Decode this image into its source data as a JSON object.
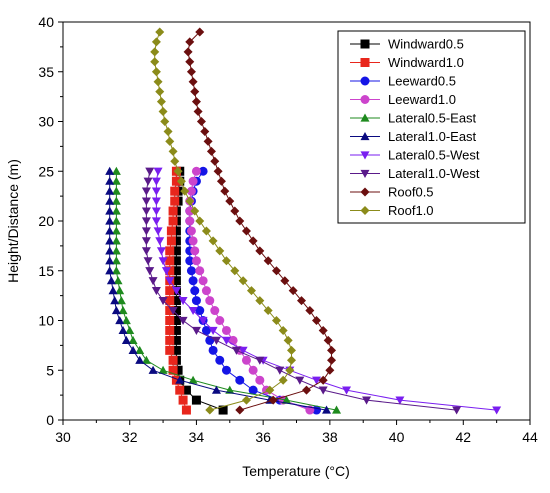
{
  "chart_data": {
    "type": "line",
    "xlabel": "Temperature (°C)",
    "ylabel": "Height/Distance (m)",
    "xlim": [
      30,
      44
    ],
    "ylim": [
      0,
      40
    ],
    "xticks": [
      30,
      32,
      34,
      36,
      38,
      40,
      42,
      44
    ],
    "yticks": [
      0,
      5,
      10,
      15,
      20,
      25,
      30,
      35,
      40
    ],
    "legend_position": "top-right",
    "series": [
      {
        "name": "Windward0.5",
        "color": "#000000",
        "marker": "square",
        "points": [
          [
            34.8,
            1
          ],
          [
            34.0,
            2
          ],
          [
            33.7,
            3
          ],
          [
            33.5,
            4
          ],
          [
            33.45,
            5
          ],
          [
            33.4,
            6
          ],
          [
            33.4,
            7
          ],
          [
            33.4,
            8
          ],
          [
            33.4,
            9
          ],
          [
            33.4,
            10
          ],
          [
            33.4,
            11
          ],
          [
            33.4,
            12
          ],
          [
            33.4,
            13
          ],
          [
            33.4,
            14
          ],
          [
            33.4,
            15
          ],
          [
            33.4,
            16
          ],
          [
            33.4,
            17
          ],
          [
            33.4,
            18
          ],
          [
            33.4,
            19
          ],
          [
            33.4,
            20
          ],
          [
            33.4,
            21
          ],
          [
            33.45,
            22
          ],
          [
            33.45,
            23
          ],
          [
            33.5,
            24
          ],
          [
            33.5,
            25
          ]
        ]
      },
      {
        "name": "Windward1.0",
        "color": "#e8261c",
        "marker": "square",
        "points": [
          [
            33.7,
            1
          ],
          [
            33.6,
            2
          ],
          [
            33.5,
            3
          ],
          [
            33.4,
            4
          ],
          [
            33.3,
            5
          ],
          [
            33.3,
            6
          ],
          [
            33.2,
            7
          ],
          [
            33.2,
            8
          ],
          [
            33.2,
            9
          ],
          [
            33.2,
            10
          ],
          [
            33.2,
            11
          ],
          [
            33.2,
            12
          ],
          [
            33.2,
            13
          ],
          [
            33.2,
            14
          ],
          [
            33.2,
            15
          ],
          [
            33.2,
            16
          ],
          [
            33.2,
            17
          ],
          [
            33.25,
            18
          ],
          [
            33.25,
            19
          ],
          [
            33.3,
            20
          ],
          [
            33.3,
            21
          ],
          [
            33.35,
            22
          ],
          [
            33.35,
            23
          ],
          [
            33.4,
            24
          ],
          [
            33.4,
            25
          ]
        ]
      },
      {
        "name": "Leeward0.5",
        "color": "#1515e6",
        "marker": "circle",
        "points": [
          [
            37.6,
            1
          ],
          [
            36.5,
            2
          ],
          [
            35.7,
            3
          ],
          [
            35.3,
            4
          ],
          [
            34.9,
            5
          ],
          [
            34.7,
            6
          ],
          [
            34.5,
            7
          ],
          [
            34.4,
            8
          ],
          [
            34.3,
            9
          ],
          [
            34.2,
            10
          ],
          [
            34.1,
            11
          ],
          [
            34.0,
            12
          ],
          [
            33.95,
            13
          ],
          [
            33.9,
            14
          ],
          [
            33.85,
            15
          ],
          [
            33.8,
            16
          ],
          [
            33.8,
            17
          ],
          [
            33.8,
            18
          ],
          [
            33.8,
            19
          ],
          [
            33.8,
            20
          ],
          [
            33.8,
            21
          ],
          [
            33.85,
            22
          ],
          [
            33.9,
            23
          ],
          [
            34.0,
            24
          ],
          [
            34.2,
            25
          ]
        ]
      },
      {
        "name": "Leeward1.0",
        "color": "#cc44cc",
        "marker": "circle",
        "points": [
          [
            37.4,
            1
          ],
          [
            36.6,
            2
          ],
          [
            36.1,
            3
          ],
          [
            35.9,
            4
          ],
          [
            35.7,
            5
          ],
          [
            35.5,
            6
          ],
          [
            35.3,
            7
          ],
          [
            35.1,
            8
          ],
          [
            34.9,
            9
          ],
          [
            34.7,
            10
          ],
          [
            34.55,
            11
          ],
          [
            34.4,
            12
          ],
          [
            34.3,
            13
          ],
          [
            34.2,
            14
          ],
          [
            34.1,
            15
          ],
          [
            34.0,
            16
          ],
          [
            33.95,
            17
          ],
          [
            33.9,
            18
          ],
          [
            33.85,
            19
          ],
          [
            33.8,
            20
          ],
          [
            33.8,
            21
          ],
          [
            33.8,
            22
          ],
          [
            33.85,
            23
          ],
          [
            33.9,
            24
          ],
          [
            34.0,
            25
          ]
        ]
      },
      {
        "name": "Lateral0.5-East",
        "color": "#1e8a1e",
        "marker": "triangle-up",
        "points": [
          [
            38.2,
            1
          ],
          [
            36.7,
            2
          ],
          [
            35.0,
            3
          ],
          [
            33.9,
            4
          ],
          [
            33.0,
            5
          ],
          [
            32.5,
            6
          ],
          [
            32.3,
            7
          ],
          [
            32.1,
            8
          ],
          [
            32.0,
            9
          ],
          [
            31.9,
            10
          ],
          [
            31.8,
            11
          ],
          [
            31.75,
            12
          ],
          [
            31.7,
            13
          ],
          [
            31.65,
            14
          ],
          [
            31.6,
            15
          ],
          [
            31.6,
            16
          ],
          [
            31.6,
            17
          ],
          [
            31.6,
            18
          ],
          [
            31.6,
            19
          ],
          [
            31.6,
            20
          ],
          [
            31.6,
            21
          ],
          [
            31.6,
            22
          ],
          [
            31.6,
            23
          ],
          [
            31.6,
            24
          ],
          [
            31.6,
            25
          ]
        ]
      },
      {
        "name": "Lateral1.0-East",
        "color": "#0a0a80",
        "marker": "triangle-up",
        "points": [
          [
            37.9,
            1
          ],
          [
            36.2,
            2
          ],
          [
            34.6,
            3
          ],
          [
            33.5,
            4
          ],
          [
            32.7,
            5
          ],
          [
            32.3,
            6
          ],
          [
            32.1,
            7
          ],
          [
            31.9,
            8
          ],
          [
            31.8,
            9
          ],
          [
            31.7,
            10
          ],
          [
            31.6,
            11
          ],
          [
            31.55,
            12
          ],
          [
            31.5,
            13
          ],
          [
            31.45,
            14
          ],
          [
            31.4,
            15
          ],
          [
            31.4,
            16
          ],
          [
            31.4,
            17
          ],
          [
            31.4,
            18
          ],
          [
            31.4,
            19
          ],
          [
            31.4,
            20
          ],
          [
            31.4,
            21
          ],
          [
            31.4,
            22
          ],
          [
            31.4,
            23
          ],
          [
            31.4,
            24
          ],
          [
            31.4,
            25
          ]
        ]
      },
      {
        "name": "Lateral0.5-West",
        "color": "#7a1ef0",
        "marker": "triangle-down",
        "points": [
          [
            43.0,
            1
          ],
          [
            40.1,
            2
          ],
          [
            38.5,
            3
          ],
          [
            37.6,
            4
          ],
          [
            36.8,
            5
          ],
          [
            36.0,
            6
          ],
          [
            35.4,
            7
          ],
          [
            34.9,
            8
          ],
          [
            34.5,
            9
          ],
          [
            34.2,
            10
          ],
          [
            33.9,
            11
          ],
          [
            33.6,
            12
          ],
          [
            33.4,
            13
          ],
          [
            33.2,
            14
          ],
          [
            33.1,
            15
          ],
          [
            33.0,
            16
          ],
          [
            32.95,
            17
          ],
          [
            32.9,
            18
          ],
          [
            32.85,
            19
          ],
          [
            32.8,
            20
          ],
          [
            32.8,
            21
          ],
          [
            32.8,
            22
          ],
          [
            32.8,
            23
          ],
          [
            32.8,
            24
          ],
          [
            32.85,
            25
          ]
        ]
      },
      {
        "name": "Lateral1.0-West",
        "color": "#5a1a8a",
        "marker": "triangle-down",
        "points": [
          [
            41.8,
            1
          ],
          [
            39.1,
            2
          ],
          [
            37.8,
            3
          ],
          [
            37.1,
            4
          ],
          [
            36.5,
            5
          ],
          [
            35.9,
            6
          ],
          [
            35.2,
            7
          ],
          [
            34.6,
            8
          ],
          [
            34.0,
            9
          ],
          [
            33.6,
            10
          ],
          [
            33.3,
            11
          ],
          [
            33.0,
            12
          ],
          [
            32.8,
            13
          ],
          [
            32.7,
            14
          ],
          [
            32.6,
            15
          ],
          [
            32.55,
            16
          ],
          [
            32.5,
            17
          ],
          [
            32.5,
            18
          ],
          [
            32.5,
            19
          ],
          [
            32.5,
            20
          ],
          [
            32.5,
            21
          ],
          [
            32.5,
            22
          ],
          [
            32.5,
            23
          ],
          [
            32.55,
            24
          ],
          [
            32.6,
            25
          ]
        ]
      },
      {
        "name": "Roof0.5",
        "color": "#6b0f0f",
        "marker": "diamond",
        "points": [
          [
            35.3,
            1
          ],
          [
            36.3,
            2
          ],
          [
            37.3,
            3
          ],
          [
            37.8,
            4
          ],
          [
            38.0,
            5
          ],
          [
            38.05,
            6
          ],
          [
            38.05,
            7
          ],
          [
            37.95,
            8
          ],
          [
            37.8,
            9
          ],
          [
            37.6,
            10
          ],
          [
            37.4,
            11
          ],
          [
            37.15,
            12
          ],
          [
            36.9,
            13
          ],
          [
            36.65,
            14
          ],
          [
            36.4,
            15
          ],
          [
            36.15,
            16
          ],
          [
            35.9,
            17
          ],
          [
            35.7,
            18
          ],
          [
            35.5,
            19
          ],
          [
            35.3,
            20
          ],
          [
            35.15,
            21
          ],
          [
            35.0,
            22
          ],
          [
            34.85,
            23
          ],
          [
            34.75,
            24
          ],
          [
            34.65,
            25
          ],
          [
            34.55,
            26
          ],
          [
            34.45,
            27
          ],
          [
            34.35,
            28
          ],
          [
            34.25,
            29
          ],
          [
            34.15,
            30
          ],
          [
            34.05,
            31
          ],
          [
            34.0,
            32
          ],
          [
            33.95,
            33
          ],
          [
            33.9,
            34
          ],
          [
            33.85,
            35
          ],
          [
            33.8,
            36
          ],
          [
            33.75,
            37
          ],
          [
            33.8,
            38
          ],
          [
            34.1,
            39
          ]
        ]
      },
      {
        "name": "Roof1.0",
        "color": "#8b8b1a",
        "marker": "diamond",
        "points": [
          [
            34.4,
            1
          ],
          [
            35.5,
            2
          ],
          [
            36.2,
            3
          ],
          [
            36.6,
            4
          ],
          [
            36.8,
            5
          ],
          [
            36.85,
            6
          ],
          [
            36.85,
            7
          ],
          [
            36.75,
            8
          ],
          [
            36.6,
            9
          ],
          [
            36.4,
            10
          ],
          [
            36.15,
            11
          ],
          [
            35.9,
            12
          ],
          [
            35.65,
            13
          ],
          [
            35.4,
            14
          ],
          [
            35.15,
            15
          ],
          [
            34.9,
            16
          ],
          [
            34.7,
            17
          ],
          [
            34.5,
            18
          ],
          [
            34.3,
            19
          ],
          [
            34.1,
            20
          ],
          [
            33.95,
            21
          ],
          [
            33.8,
            22
          ],
          [
            33.65,
            23
          ],
          [
            33.55,
            24
          ],
          [
            33.45,
            25
          ],
          [
            33.35,
            26
          ],
          [
            33.3,
            27
          ],
          [
            33.2,
            28
          ],
          [
            33.15,
            29
          ],
          [
            33.05,
            30
          ],
          [
            33.0,
            31
          ],
          [
            32.95,
            32
          ],
          [
            32.9,
            33
          ],
          [
            32.85,
            34
          ],
          [
            32.8,
            35
          ],
          [
            32.75,
            36
          ],
          [
            32.75,
            37
          ],
          [
            32.8,
            38
          ],
          [
            32.9,
            39
          ]
        ]
      }
    ]
  }
}
